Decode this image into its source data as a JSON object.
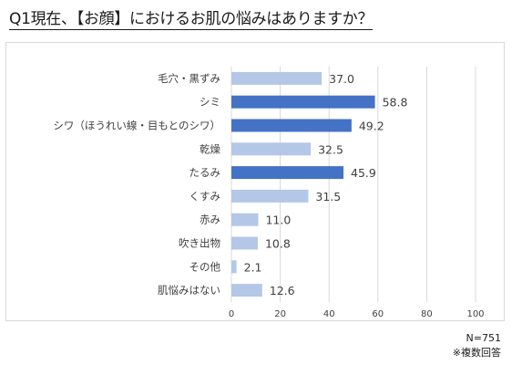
{
  "title": "Q1現在、【お顔】におけるお肌の悩みはありますか？",
  "notes": {
    "sample": "N=751",
    "multiple": "※複数回答"
  },
  "colors": {
    "highlight": "#4472c4",
    "normal": "#b4c7e7",
    "grid": "#d9d9d9",
    "label": "#404040"
  },
  "chart_data": {
    "type": "bar",
    "orientation": "horizontal",
    "categories": [
      "毛穴・黒ずみ",
      "シミ",
      "シワ（ほうれい線・目もとのシワ）",
      "乾燥",
      "たるみ",
      "くすみ",
      "赤み",
      "吹き出物",
      "その他",
      "肌悩みはない"
    ],
    "values": [
      37.0,
      58.8,
      49.2,
      32.5,
      45.9,
      31.5,
      11.0,
      10.8,
      2.1,
      12.6
    ],
    "value_labels": [
      "37.0",
      "58.8",
      "49.2",
      "32.5",
      "45.9",
      "31.5",
      "11.0",
      "10.8",
      "2.1",
      "12.6"
    ],
    "highlighted": [
      false,
      true,
      true,
      false,
      true,
      false,
      false,
      false,
      false,
      false
    ],
    "xlim": [
      0,
      100
    ],
    "xticks": [
      "0",
      "20",
      "40",
      "60",
      "80",
      "100"
    ],
    "grid": true,
    "xlabel": "",
    "ylabel": ""
  }
}
